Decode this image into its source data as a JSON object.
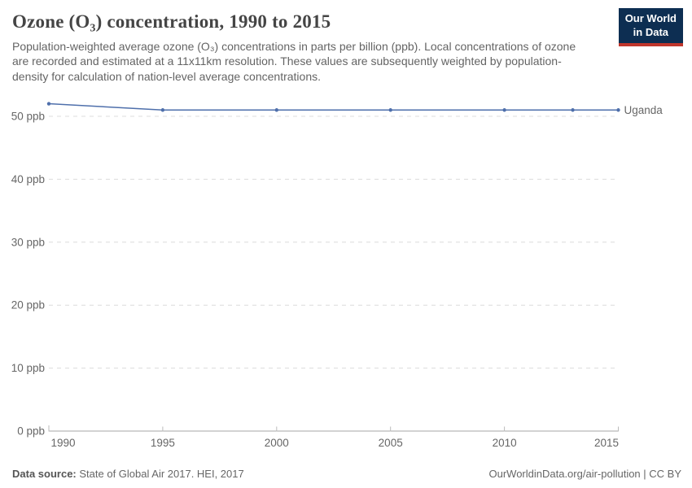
{
  "header": {
    "title": "Ozone (O₃) concentration, 1990 to 2015",
    "subtitle": "Population-weighted average ozone (O₃) concentrations in parts per billion (ppb). Local concentrations of ozone are recorded and estimated at a 11x11km resolution. These values are subsequently weighted by population-density for calculation of nation-level average concentrations."
  },
  "logo": {
    "line1": "Our World",
    "line2": "in Data",
    "bg_color": "#0d2e52",
    "accent_color": "#c0362c"
  },
  "footer": {
    "datasource_label": "Data source:",
    "datasource_value": "State of Global Air 2017. HEI, 2017",
    "right_text": "OurWorldinData.org/air-pollution | CC BY"
  },
  "chart_data": {
    "type": "line",
    "title": "Ozone (O₃) concentration, 1990 to 2015",
    "x": [
      1990,
      1995,
      2000,
      2005,
      2010,
      2013,
      2015
    ],
    "series": [
      {
        "name": "Uganda",
        "values": [
          52,
          51,
          51,
          51,
          51,
          51,
          51
        ],
        "color": "#4e6fab"
      }
    ],
    "xlabel": "",
    "ylabel": "",
    "xlim": [
      1990,
      2015
    ],
    "ylim": [
      0,
      53.5
    ],
    "xticks": [
      1990,
      1995,
      2000,
      2005,
      2010,
      2015
    ],
    "yticks": [
      0,
      10,
      20,
      30,
      40,
      50
    ],
    "ytick_suffix": " ppb",
    "grid": "horizontal-dashed",
    "legend": "line-end-label",
    "colors": {
      "grid_line": "#dcdcdc",
      "axis_line": "#a6a6a6",
      "tick_mark": "#bbbbbb",
      "tick_label": "#666666"
    }
  }
}
